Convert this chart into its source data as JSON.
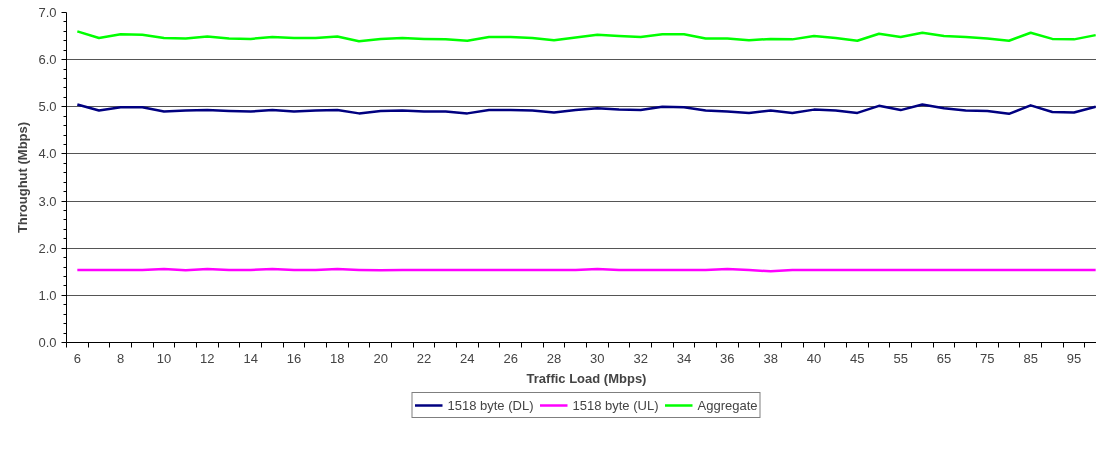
{
  "chart_data": {
    "type": "line",
    "xlabel": "Traffic Load (Mbps)",
    "ylabel": "Throughut (Mbps)",
    "categories": [
      "6",
      null,
      "8",
      null,
      "10",
      null,
      "12",
      null,
      "14",
      null,
      "16",
      null,
      "18",
      null,
      "20",
      null,
      "22",
      null,
      "24",
      null,
      "26",
      null,
      "28",
      null,
      "30",
      null,
      "32",
      null,
      "34",
      null,
      "36",
      null,
      "38",
      null,
      "40",
      null,
      "45",
      null,
      "55",
      null,
      "65",
      null,
      "75",
      null,
      "85",
      null,
      "95",
      null
    ],
    "ylim": [
      0,
      7
    ],
    "yticks": [
      {
        "value": 0,
        "label": "0.0"
      },
      {
        "value": 1,
        "label": "1.0"
      },
      {
        "value": 2,
        "label": "2.0"
      },
      {
        "value": 3,
        "label": "3.0"
      },
      {
        "value": 4,
        "label": "4.0"
      },
      {
        "value": 5,
        "label": "5.0"
      },
      {
        "value": 6,
        "label": "6.0"
      },
      {
        "value": 7,
        "label": "7.0"
      }
    ],
    "grid": "y",
    "legend": "bottom",
    "marker": "none",
    "line_style": "solid",
    "series": [
      {
        "name": "1518 byte (DL)",
        "color": "#000080",
        "values": [
          5.05,
          4.92,
          4.99,
          4.99,
          4.9,
          4.92,
          4.93,
          4.91,
          4.9,
          4.93,
          4.9,
          4.92,
          4.93,
          4.86,
          4.91,
          4.92,
          4.9,
          4.9,
          4.86,
          4.93,
          4.93,
          4.92,
          4.88,
          4.93,
          4.97,
          4.94,
          4.93,
          5.0,
          4.99,
          4.92,
          4.9,
          4.87,
          4.92,
          4.87,
          4.94,
          4.92,
          4.87,
          5.02,
          4.93,
          5.05,
          4.97,
          4.92,
          4.91,
          4.85,
          5.03,
          4.89,
          4.88,
          5.0
        ]
      },
      {
        "name": "1518 byte (UL)",
        "color": "#ff00ff",
        "values": [
          1.54,
          1.54,
          1.54,
          1.54,
          1.56,
          1.53,
          1.56,
          1.54,
          1.54,
          1.56,
          1.54,
          1.54,
          1.56,
          1.54,
          1.53,
          1.54,
          1.54,
          1.54,
          1.54,
          1.54,
          1.54,
          1.54,
          1.54,
          1.54,
          1.56,
          1.54,
          1.54,
          1.54,
          1.54,
          1.54,
          1.56,
          1.54,
          1.51,
          1.54,
          1.54,
          1.54,
          1.54,
          1.54,
          1.54,
          1.54,
          1.54,
          1.54,
          1.54,
          1.54,
          1.54,
          1.54,
          1.54,
          1.54
        ]
      },
      {
        "name": "Aggregate",
        "color": "#00ff00",
        "values": [
          6.6,
          6.46,
          6.54,
          6.53,
          6.46,
          6.45,
          6.49,
          6.45,
          6.44,
          6.48,
          6.46,
          6.46,
          6.49,
          6.39,
          6.44,
          6.46,
          6.44,
          6.43,
          6.4,
          6.48,
          6.48,
          6.46,
          6.41,
          6.47,
          6.53,
          6.5,
          6.48,
          6.54,
          6.54,
          6.45,
          6.45,
          6.41,
          6.44,
          6.43,
          6.5,
          6.46,
          6.4,
          6.55,
          6.48,
          6.57,
          6.5,
          6.48,
          6.45,
          6.4,
          6.57,
          6.44,
          6.43,
          6.52
        ]
      }
    ]
  }
}
